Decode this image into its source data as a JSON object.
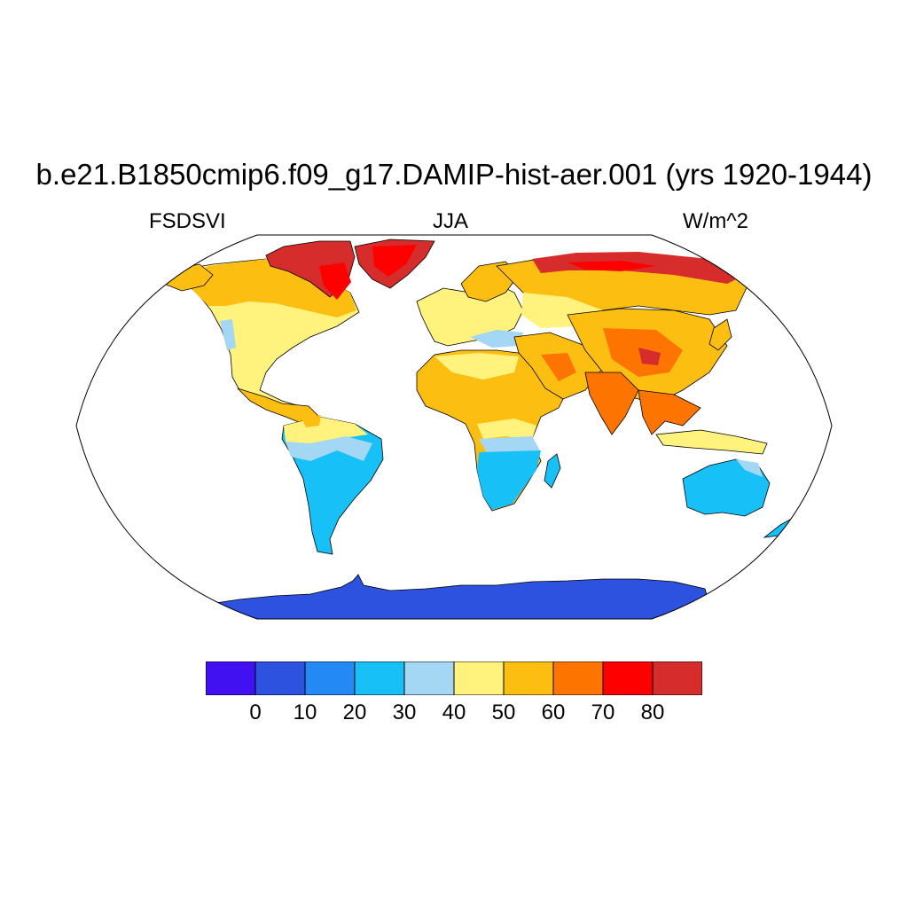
{
  "title": "b.e21.B1850cmip6.f09_g17.DAMIP-hist-aer.001 (yrs 1920-1944)",
  "left_label": "FSDSVI",
  "center_label": "JJA",
  "right_label": "W/m^2",
  "colorbar": {
    "colors": [
      "#4111f2",
      "#2d52e0",
      "#2389f5",
      "#17c0f7",
      "#a3d7f3",
      "#fff27d",
      "#fdbe12",
      "#fd7400",
      "#ff0000",
      "#d62c2c"
    ],
    "labels": [
      "0",
      "10",
      "20",
      "30",
      "40",
      "50",
      "60",
      "70",
      "80"
    ]
  },
  "chart_data": {
    "type": "heatmap",
    "variable": "FSDSVI",
    "season": "JJA",
    "units": "W/m^2",
    "levels": [
      0,
      10,
      20,
      30,
      40,
      50,
      60,
      70,
      80
    ],
    "regions": [
      {
        "name": "Antarctica",
        "value_range": [
          0,
          10
        ]
      },
      {
        "name": "Greenland",
        "value_range": [
          70,
          80
        ]
      },
      {
        "name": "Canadian Arctic Archipelago",
        "value_range": [
          70,
          90
        ]
      },
      {
        "name": "Northern Siberia coast",
        "value_range": [
          70,
          90
        ]
      },
      {
        "name": "Canada",
        "value_range": [
          50,
          60
        ]
      },
      {
        "name": "United States",
        "value_range": [
          40,
          50
        ]
      },
      {
        "name": "Mexico / Central America",
        "value_range": [
          50,
          60
        ]
      },
      {
        "name": "Northern South America",
        "value_range": [
          40,
          50
        ]
      },
      {
        "name": "South America",
        "value_range": [
          20,
          30
        ]
      },
      {
        "name": "Europe",
        "value_range": [
          40,
          50
        ]
      },
      {
        "name": "Scandinavia",
        "value_range": [
          50,
          60
        ]
      },
      {
        "name": "Sahara / North Africa",
        "value_range": [
          50,
          60
        ]
      },
      {
        "name": "Central Africa",
        "value_range": [
          30,
          40
        ]
      },
      {
        "name": "Southern Africa",
        "value_range": [
          20,
          30
        ]
      },
      {
        "name": "Arabia / Middle East",
        "value_range": [
          50,
          60
        ]
      },
      {
        "name": "Russia / Siberia",
        "value_range": [
          50,
          60
        ]
      },
      {
        "name": "Tibet / Central Asia",
        "value_range": [
          60,
          70
        ]
      },
      {
        "name": "India / SE Asia",
        "value_range": [
          60,
          70
        ]
      },
      {
        "name": "Indonesia",
        "value_range": [
          40,
          50
        ]
      },
      {
        "name": "Australia",
        "value_range": [
          20,
          30
        ]
      },
      {
        "name": "New Zealand",
        "value_range": [
          20,
          30
        ]
      }
    ]
  }
}
